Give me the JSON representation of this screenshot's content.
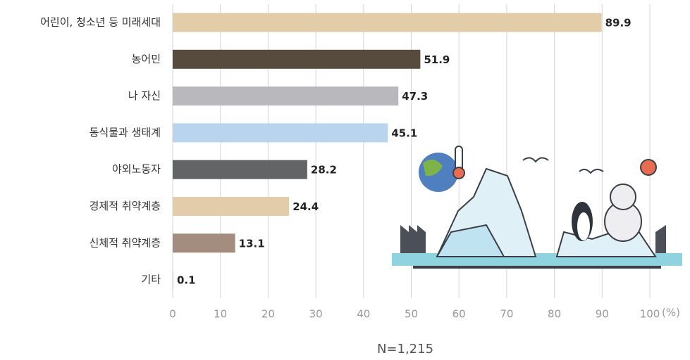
{
  "chart_data": {
    "type": "bar",
    "orientation": "horizontal",
    "categories": [
      "어린이, 청소년 등 미래세대",
      "농어민",
      "나 자신",
      "동식물과 생태계",
      "야외노동자",
      "경제적 취약계층",
      "신체적 취약계층",
      "기타"
    ],
    "values": [
      89.9,
      51.9,
      47.3,
      45.1,
      28.2,
      24.4,
      13.1,
      0.1
    ],
    "colors": [
      "#e2ccaa",
      "#574b3d",
      "#b9b9bd",
      "#b8d4ee",
      "#636466",
      "#e2ccaa",
      "#a38d7e",
      "#7fc6cf"
    ],
    "xlim": [
      0,
      100
    ],
    "xticks": [
      0,
      10,
      20,
      30,
      40,
      50,
      60,
      70,
      80,
      90,
      100
    ],
    "xlabel": "(%)",
    "note": "N=1,215",
    "grid": true
  }
}
